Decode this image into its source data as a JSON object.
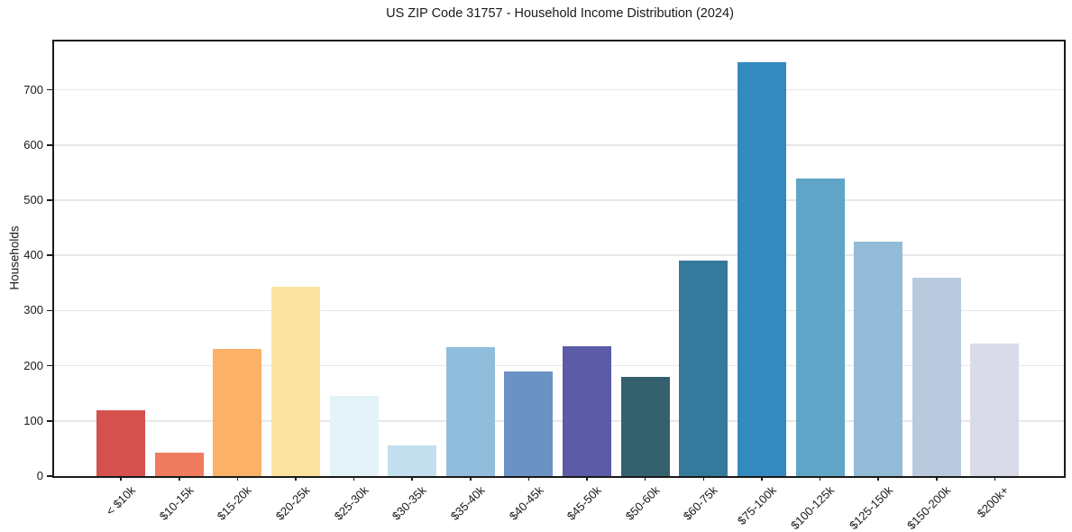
{
  "chart_data": {
    "type": "bar",
    "title": "US ZIP Code 31757 - Household Income Distribution (2024)",
    "xlabel": "",
    "ylabel": "Households",
    "categories": [
      "< $10k",
      "$10-15k",
      "$15-20k",
      "$20-25k",
      "$25-30k",
      "$30-35k",
      "$35-40k",
      "$40-45k",
      "$45-50k",
      "$50-60k",
      "$60-75k",
      "$75-100k",
      "$100-125k",
      "$125-150k",
      "$150-200k",
      "$200k+"
    ],
    "values": [
      120,
      42,
      230,
      343,
      145,
      55,
      233,
      189,
      236,
      179,
      390,
      750,
      540,
      425,
      360,
      240
    ],
    "bar_colors": [
      "#d4514e",
      "#ef7c5f",
      "#fbb168",
      "#fce3a0",
      "#e3f3f7",
      "#c2e0ed",
      "#90bddc",
      "#6b92c5",
      "#5b5ba8",
      "#35616f",
      "#35799d",
      "#348abf",
      "#60a5c8",
      "#93bad6",
      "#b9cade",
      "#d9dbe9"
    ],
    "yticks": [
      0,
      100,
      200,
      300,
      400,
      500,
      600,
      700
    ],
    "ylim": [
      0,
      787.5
    ],
    "xtick_rotation_deg": 45,
    "grid": "horizontal-only",
    "legend": "none",
    "colors": {
      "background": "#ffffff",
      "spine": "#1a1a1a",
      "gridline": "#e7e7e7",
      "text": "#1a1a1a"
    }
  }
}
